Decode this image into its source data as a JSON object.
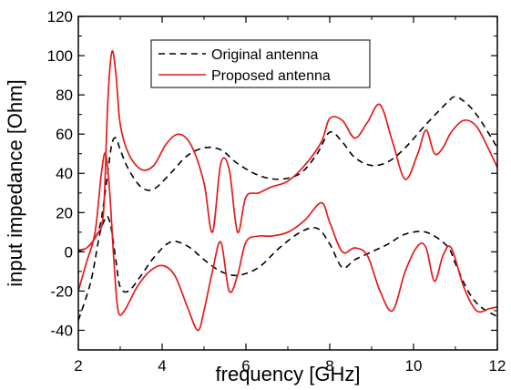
{
  "chart_data": {
    "type": "line",
    "xlabel": "frequency [GHz]",
    "ylabel": "input impedance [Ohm]",
    "xlim": [
      2,
      12
    ],
    "ylim": [
      -50,
      120
    ],
    "xticks": [
      2,
      4,
      6,
      8,
      10,
      12
    ],
    "yticks": [
      -40,
      -20,
      0,
      20,
      40,
      60,
      80,
      100,
      120
    ],
    "grid": false,
    "legend_position": "top-center",
    "series": [
      {
        "name": "Original antenna",
        "group": "real",
        "color": "#000000",
        "style": "dashed",
        "x": [
          2.0,
          2.3,
          2.5,
          2.6,
          2.7,
          2.8,
          2.9,
          3.0,
          3.2,
          3.5,
          3.8,
          4.2,
          4.6,
          5.0,
          5.4,
          5.8,
          6.3,
          6.8,
          7.3,
          7.7,
          8.0,
          8.3,
          8.6,
          9.0,
          9.4,
          9.8,
          10.3,
          10.8,
          11.0,
          11.3,
          11.6,
          12.0
        ],
        "y": [
          0,
          4,
          12,
          24,
          40,
          55,
          58,
          52,
          42,
          33,
          32,
          40,
          49,
          53,
          52,
          45,
          39,
          37,
          40,
          50,
          61,
          56,
          48,
          44,
          46,
          53,
          65,
          76,
          79,
          75,
          67,
          53
        ]
      },
      {
        "name": "Original antenna",
        "group": "imaginary",
        "color": "#000000",
        "style": "dashed",
        "x": [
          2.0,
          2.3,
          2.5,
          2.6,
          2.7,
          2.8,
          2.9,
          3.0,
          3.2,
          3.5,
          3.8,
          4.2,
          4.6,
          5.0,
          5.4,
          5.8,
          6.3,
          6.8,
          7.3,
          7.7,
          8.0,
          8.3,
          8.6,
          9.0,
          9.4,
          9.8,
          10.3,
          10.8,
          11.0,
          11.3,
          11.6,
          12.0
        ],
        "y": [
          -35,
          -15,
          8,
          15,
          18,
          10,
          -5,
          -18,
          -20,
          -12,
          -3,
          5,
          3,
          -4,
          -10,
          -12,
          -8,
          2,
          10,
          12,
          4,
          -8,
          -4,
          0,
          4,
          9,
          10,
          3,
          -6,
          -20,
          -28,
          -33
        ]
      },
      {
        "name": "Proposed antenna",
        "group": "real",
        "color": "#e41a1c",
        "style": "solid",
        "x": [
          2.0,
          2.2,
          2.45,
          2.6,
          2.7,
          2.8,
          2.9,
          3.0,
          3.2,
          3.5,
          3.8,
          4.1,
          4.4,
          4.7,
          5.0,
          5.2,
          5.4,
          5.6,
          5.8,
          6.0,
          6.3,
          6.6,
          7.0,
          7.4,
          7.8,
          8.0,
          8.3,
          8.6,
          8.9,
          9.2,
          9.5,
          9.8,
          10.1,
          10.3,
          10.5,
          10.7,
          10.9,
          11.2,
          11.5,
          11.8,
          12.0
        ],
        "y": [
          1,
          2,
          9,
          20,
          75,
          102,
          90,
          65,
          50,
          42,
          44,
          55,
          60,
          54,
          35,
          10,
          45,
          42,
          10,
          28,
          30,
          33,
          36,
          44,
          56,
          68,
          67,
          58,
          66,
          75,
          56,
          37,
          50,
          62,
          50,
          53,
          61,
          67,
          64,
          52,
          43
        ]
      },
      {
        "name": "Proposed antenna",
        "group": "imaginary",
        "color": "#e41a1c",
        "style": "solid",
        "x": [
          2.0,
          2.2,
          2.4,
          2.55,
          2.65,
          2.75,
          2.85,
          2.95,
          3.1,
          3.4,
          3.7,
          4.0,
          4.3,
          4.6,
          4.85,
          5.0,
          5.2,
          5.4,
          5.6,
          5.8,
          6.0,
          6.3,
          6.6,
          7.0,
          7.4,
          7.8,
          8.0,
          8.3,
          8.6,
          8.9,
          9.2,
          9.5,
          9.8,
          10.1,
          10.3,
          10.5,
          10.7,
          10.9,
          11.2,
          11.5,
          11.8,
          12.0
        ],
        "y": [
          -20,
          -5,
          10,
          40,
          50,
          30,
          -5,
          -30,
          -30,
          -18,
          -10,
          -7,
          -12,
          -28,
          -40,
          -30,
          -10,
          5,
          -20,
          -12,
          5,
          8,
          8,
          10,
          16,
          25,
          15,
          0,
          2,
          -2,
          -20,
          -30,
          -10,
          3,
          2,
          -15,
          -2,
          2,
          -18,
          -30,
          -29,
          -28
        ]
      }
    ]
  }
}
